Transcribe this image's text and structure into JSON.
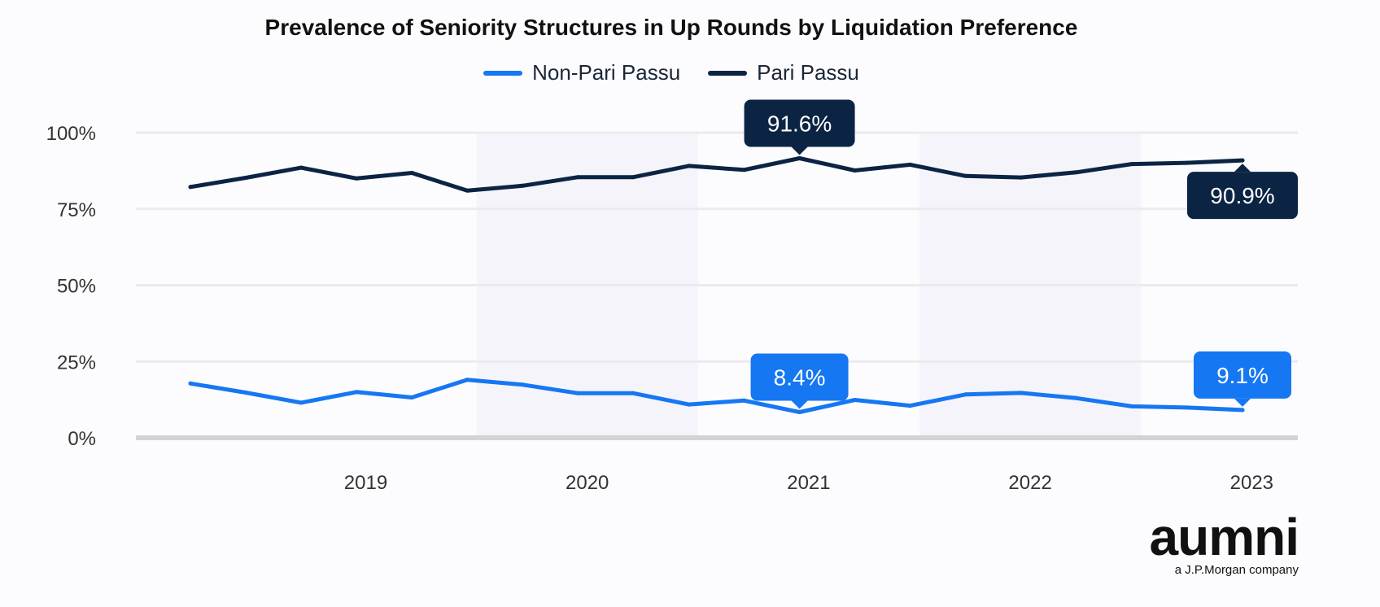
{
  "chart_data": {
    "type": "line",
    "title": "Prevalence of Seniority Structures in Up Rounds by Liquidation Preference",
    "xlabel": "",
    "ylabel": "",
    "ylim": [
      0,
      100
    ],
    "y_ticks": [
      "100%",
      "75%",
      "50%",
      "25%",
      "0%"
    ],
    "x_tick_labels": [
      "2019",
      "2020",
      "2021",
      "2022",
      "2023"
    ],
    "x": [
      "2018-09",
      "2018-12",
      "2019-03",
      "2019-06",
      "2019-09",
      "2019-12",
      "2020-03",
      "2020-06",
      "2020-09",
      "2020-12",
      "2021-03",
      "2021-06",
      "2021-09",
      "2021-12",
      "2022-03",
      "2022-06",
      "2022-09",
      "2022-12",
      "2023-03",
      "2023-06"
    ],
    "grid": true,
    "legend_position": "top-center",
    "shaded_years": [
      "2020",
      "2022"
    ],
    "series": [
      {
        "name": "Non-Pari Passu",
        "color": "#1677f2",
        "values": [
          17.8,
          14.8,
          11.5,
          15.0,
          13.2,
          19.0,
          17.4,
          14.6,
          14.6,
          10.9,
          12.2,
          8.4,
          12.4,
          10.5,
          14.2,
          14.7,
          13.0,
          10.3,
          9.9,
          9.1
        ],
        "callouts": [
          {
            "index": 11,
            "label": "8.4%",
            "position": "above"
          },
          {
            "index": 19,
            "label": "9.1%",
            "position": "above"
          }
        ]
      },
      {
        "name": "Pari Passu",
        "color": "#0c2444",
        "values": [
          82.2,
          85.2,
          88.5,
          85.0,
          86.8,
          81.0,
          82.6,
          85.4,
          85.4,
          89.1,
          87.8,
          91.6,
          87.6,
          89.5,
          85.8,
          85.3,
          87.0,
          89.7,
          90.1,
          90.9
        ],
        "callouts": [
          {
            "index": 11,
            "label": "91.6%",
            "position": "above"
          },
          {
            "index": 19,
            "label": "90.9%",
            "position": "below"
          }
        ]
      }
    ]
  },
  "brand": {
    "logo_text": "aumni",
    "tagline": "a J.P.Morgan company"
  }
}
